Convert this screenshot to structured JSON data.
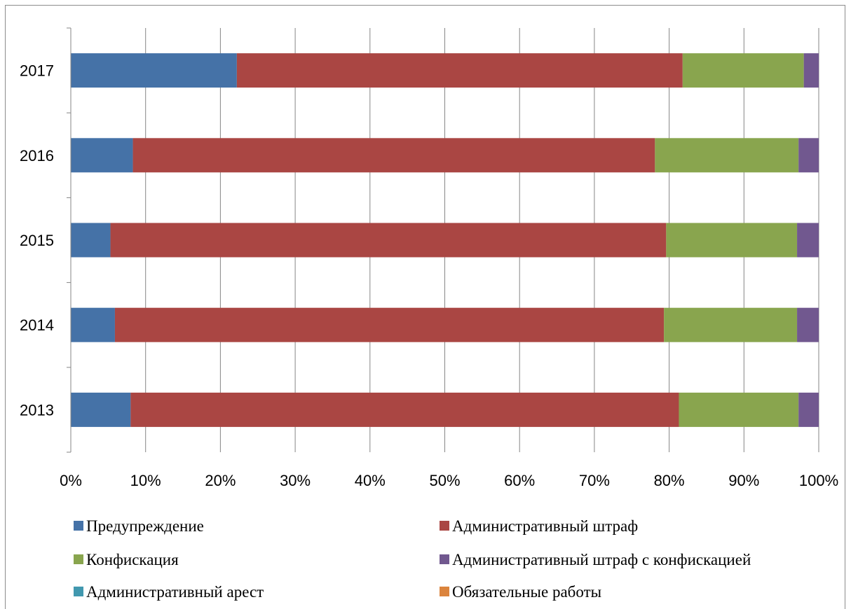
{
  "chart_data": {
    "type": "bar",
    "orientation": "horizontal",
    "stacking": "percent",
    "categories": [
      "2013",
      "2014",
      "2015",
      "2016",
      "2017"
    ],
    "series": [
      {
        "name": "Предупреждение",
        "color": "#4572a7",
        "values": [
          8.0,
          5.9,
          5.3,
          8.3,
          22.2
        ]
      },
      {
        "name": "Административный штраф",
        "color": "#aa4643",
        "values": [
          73.3,
          73.4,
          74.3,
          69.8,
          59.6
        ]
      },
      {
        "name": "Конфискация",
        "color": "#89a54e",
        "values": [
          16.0,
          17.8,
          17.5,
          19.2,
          16.2
        ]
      },
      {
        "name": "Административный штраф с конфискацией",
        "color": "#71588f",
        "values": [
          2.7,
          2.9,
          2.9,
          2.7,
          2.0
        ]
      },
      {
        "name": "Административный арест",
        "color": "#4198af",
        "values": [
          0,
          0,
          0,
          0,
          0
        ]
      },
      {
        "name": "Обязательные работы",
        "color": "#db843d",
        "values": [
          0,
          0,
          0,
          0,
          0
        ]
      }
    ],
    "xlim": [
      0,
      100
    ],
    "x_ticks": [
      "0%",
      "10%",
      "20%",
      "30%",
      "40%",
      "50%",
      "60%",
      "70%",
      "80%",
      "90%",
      "100%"
    ],
    "grid": "vertical",
    "legend_position": "bottom"
  }
}
